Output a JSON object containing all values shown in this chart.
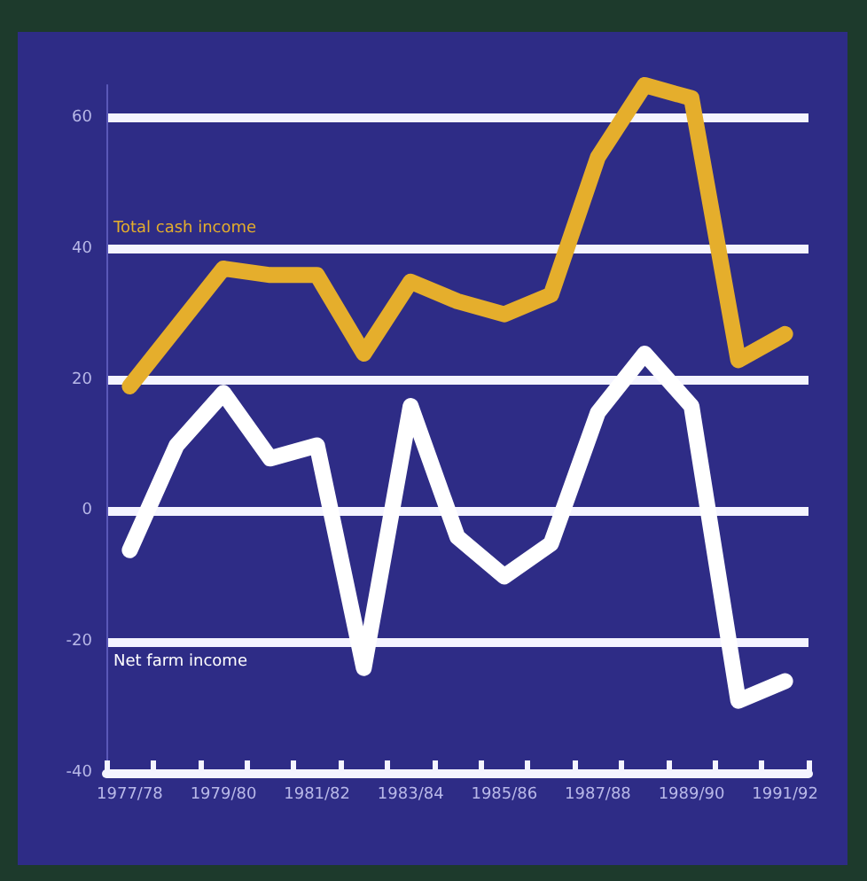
{
  "chart_data": {
    "type": "line",
    "categories": [
      "1977/78",
      null,
      "1979/80",
      null,
      "1981/82",
      null,
      "1983/84",
      null,
      "1985/86",
      null,
      "1987/88",
      null,
      "1989/90",
      null,
      "1991/92"
    ],
    "ylim": [
      -40,
      65
    ],
    "yticks": [
      -40,
      -20,
      0,
      20,
      40,
      60
    ],
    "grid": "y",
    "legend": false,
    "marker": "none",
    "line_style": "solid",
    "series": [
      {
        "name": "Total cash income",
        "color": "#e5ae2c",
        "values": [
          19,
          28,
          37,
          36,
          36,
          24,
          35,
          32,
          30,
          33,
          54,
          65,
          63,
          23,
          27
        ]
      },
      {
        "name": "Net farm income",
        "color": "#ffffff",
        "values": [
          -6,
          10,
          18,
          8,
          10,
          -24,
          16,
          -4,
          -10,
          -5,
          15,
          24,
          16,
          -29,
          -26
        ]
      }
    ]
  }
}
